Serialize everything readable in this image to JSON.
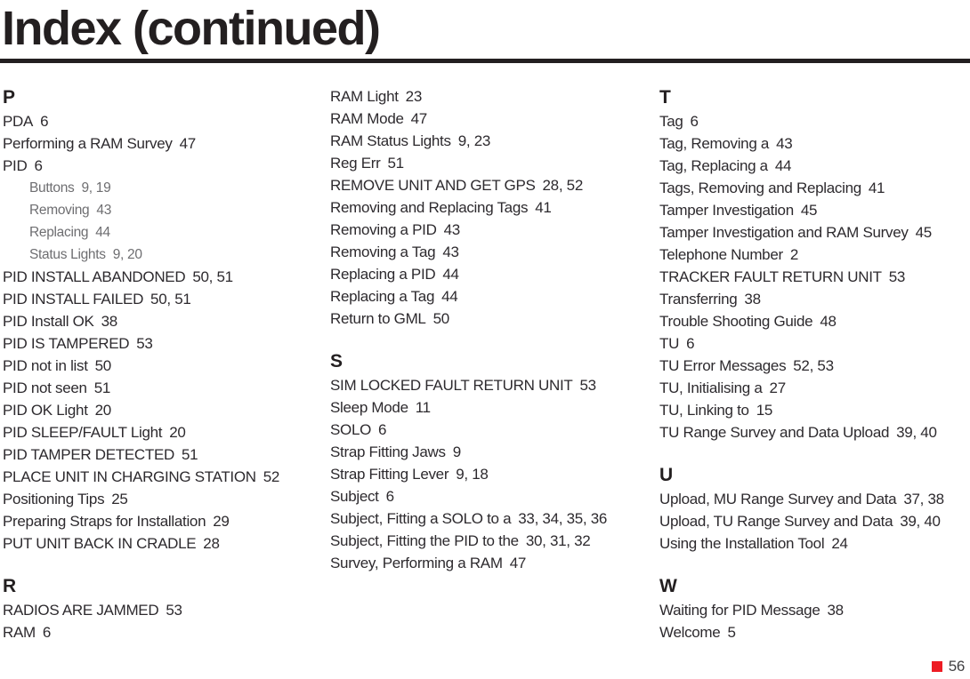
{
  "title": "Index (continued)",
  "footer": {
    "page_number": "56",
    "marker_color": "#ed1c24"
  },
  "columns": [
    {
      "items": [
        {
          "type": "heading",
          "text": "P"
        },
        {
          "type": "entry",
          "term": "PDA",
          "pages": "6"
        },
        {
          "type": "entry",
          "term": "Performing a RAM Survey",
          "pages": "47"
        },
        {
          "type": "entry",
          "term": "PID",
          "pages": "6"
        },
        {
          "type": "sub",
          "term": "Buttons",
          "pages": "9, 19"
        },
        {
          "type": "sub",
          "term": "Removing",
          "pages": "43"
        },
        {
          "type": "sub",
          "term": "Replacing",
          "pages": "44"
        },
        {
          "type": "sub",
          "term": "Status Lights",
          "pages": "9, 20"
        },
        {
          "type": "entry",
          "term": "PID INSTALL ABANDONED",
          "pages": "50, 51"
        },
        {
          "type": "entry",
          "term": "PID INSTALL FAILED",
          "pages": "50, 51"
        },
        {
          "type": "entry",
          "term": "PID Install OK",
          "pages": "38"
        },
        {
          "type": "entry",
          "term": "PID IS TAMPERED",
          "pages": "53"
        },
        {
          "type": "entry",
          "term": "PID not in list",
          "pages": "50"
        },
        {
          "type": "entry",
          "term": "PID not seen",
          "pages": "51"
        },
        {
          "type": "entry",
          "term": "PID OK Light",
          "pages": "20"
        },
        {
          "type": "entry",
          "term": "PID SLEEP/FAULT Light",
          "pages": "20"
        },
        {
          "type": "entry",
          "term": "PID TAMPER DETECTED",
          "pages": "51"
        },
        {
          "type": "entry",
          "term": "PLACE UNIT IN CHARGING STATION",
          "pages": "52"
        },
        {
          "type": "entry",
          "term": "Positioning Tips",
          "pages": "25"
        },
        {
          "type": "entry",
          "term": "Preparing Straps for Installation",
          "pages": "29"
        },
        {
          "type": "entry",
          "term": "PUT UNIT BACK IN CRADLE",
          "pages": "28"
        },
        {
          "type": "heading",
          "text": "R"
        },
        {
          "type": "entry",
          "term": "RADIOS ARE JAMMED",
          "pages": "53"
        },
        {
          "type": "entry",
          "term": "RAM",
          "pages": "6"
        }
      ]
    },
    {
      "items": [
        {
          "type": "entry",
          "term": "RAM Light",
          "pages": "23"
        },
        {
          "type": "entry",
          "term": "RAM Mode",
          "pages": "47"
        },
        {
          "type": "entry",
          "term": "RAM Status Lights",
          "pages": "9, 23"
        },
        {
          "type": "entry",
          "term": "Reg Err",
          "pages": "51"
        },
        {
          "type": "entry",
          "term": "REMOVE UNIT AND GET GPS",
          "pages": "28, 52"
        },
        {
          "type": "entry",
          "term": "Removing and Replacing Tags",
          "pages": "41"
        },
        {
          "type": "entry",
          "term": "Removing a PID",
          "pages": "43"
        },
        {
          "type": "entry",
          "term": "Removing a Tag",
          "pages": "43"
        },
        {
          "type": "entry",
          "term": "Replacing a PID",
          "pages": "44"
        },
        {
          "type": "entry",
          "term": "Replacing a Tag",
          "pages": "44"
        },
        {
          "type": "entry",
          "term": "Return to GML",
          "pages": "50"
        },
        {
          "type": "heading",
          "text": "S"
        },
        {
          "type": "entry",
          "term": "SIM LOCKED FAULT RETURN UNIT",
          "pages": "53"
        },
        {
          "type": "entry",
          "term": "Sleep Mode",
          "pages": "11"
        },
        {
          "type": "entry",
          "term": "SOLO",
          "pages": "6"
        },
        {
          "type": "entry",
          "term": "Strap Fitting Jaws",
          "pages": "9"
        },
        {
          "type": "entry",
          "term": "Strap Fitting Lever",
          "pages": "9, 18"
        },
        {
          "type": "entry",
          "term": "Subject",
          "pages": "6"
        },
        {
          "type": "entry",
          "term": "Subject, Fitting a SOLO to a",
          "pages": "33, 34, 35, 36"
        },
        {
          "type": "entry",
          "term": "Subject, Fitting the PID to the",
          "pages": "30, 31, 32"
        },
        {
          "type": "entry",
          "term": "Survey, Performing a RAM",
          "pages": "47"
        }
      ]
    },
    {
      "items": [
        {
          "type": "heading",
          "text": "T"
        },
        {
          "type": "entry",
          "term": "Tag",
          "pages": "6"
        },
        {
          "type": "entry",
          "term": "Tag, Removing a",
          "pages": "43"
        },
        {
          "type": "entry",
          "term": "Tag, Replacing a",
          "pages": "44"
        },
        {
          "type": "entry",
          "term": "Tags, Removing and Replacing",
          "pages": "41"
        },
        {
          "type": "entry",
          "term": "Tamper Investigation",
          "pages": "45"
        },
        {
          "type": "entry",
          "term": "Tamper Investigation and RAM Survey",
          "pages": "45"
        },
        {
          "type": "entry",
          "term": "Telephone Number",
          "pages": "2"
        },
        {
          "type": "entry",
          "term": "TRACKER FAULT RETURN UNIT",
          "pages": "53"
        },
        {
          "type": "entry",
          "term": "Transferring",
          "pages": "38"
        },
        {
          "type": "entry",
          "term": "Trouble Shooting Guide",
          "pages": "48"
        },
        {
          "type": "entry",
          "term": "TU",
          "pages": "6"
        },
        {
          "type": "entry",
          "term": "TU Error Messages",
          "pages": "52, 53"
        },
        {
          "type": "entry",
          "term": "TU, Initialising a",
          "pages": "27"
        },
        {
          "type": "entry",
          "term": "TU, Linking to",
          "pages": "15"
        },
        {
          "type": "entry",
          "term": "TU Range Survey and Data Upload",
          "pages": "39, 40"
        },
        {
          "type": "heading",
          "text": "U"
        },
        {
          "type": "entry",
          "term": "Upload, MU Range Survey and Data",
          "pages": "37, 38"
        },
        {
          "type": "entry",
          "term": "Upload, TU Range Survey and Data",
          "pages": "39, 40"
        },
        {
          "type": "entry",
          "term": "Using the Installation Tool",
          "pages": "24"
        },
        {
          "type": "heading",
          "text": "W"
        },
        {
          "type": "entry",
          "term": "Waiting for PID Message",
          "pages": "38"
        },
        {
          "type": "entry",
          "term": "Welcome",
          "pages": "5"
        }
      ]
    }
  ]
}
